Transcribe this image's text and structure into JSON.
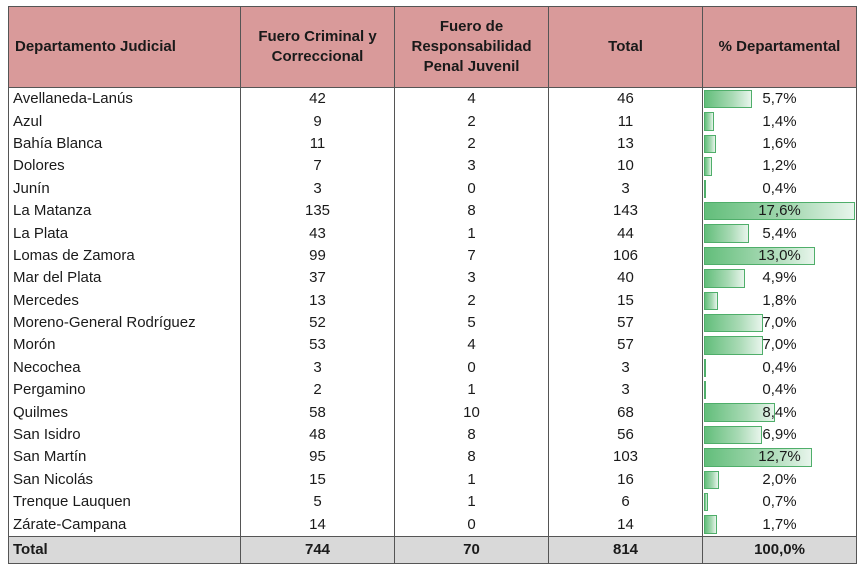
{
  "headers": {
    "departamento": "Departamento Judicial",
    "criminal": "Fuero Criminal y Correccional",
    "juvenil": "Fuero de Responsabilidad Penal Juvenil",
    "total": "Total",
    "pct": "% Departamental"
  },
  "bar_color": "#63be7b",
  "header_color": "#d99a9a",
  "footer_color": "#d9d9d9",
  "rows": [
    {
      "name": "Avellaneda-Lanús",
      "criminal": "42",
      "juvenil": "4",
      "total": "46",
      "pct": "5,7%",
      "pct_value": 5.7
    },
    {
      "name": "Azul",
      "criminal": "9",
      "juvenil": "2",
      "total": "11",
      "pct": "1,4%",
      "pct_value": 1.4
    },
    {
      "name": "Bahía Blanca",
      "criminal": "11",
      "juvenil": "2",
      "total": "13",
      "pct": "1,6%",
      "pct_value": 1.6
    },
    {
      "name": "Dolores",
      "criminal": "7",
      "juvenil": "3",
      "total": "10",
      "pct": "1,2%",
      "pct_value": 1.2
    },
    {
      "name": "Junín",
      "criminal": "3",
      "juvenil": "0",
      "total": "3",
      "pct": "0,4%",
      "pct_value": 0.4
    },
    {
      "name": "La Matanza",
      "criminal": "135",
      "juvenil": "8",
      "total": "143",
      "pct": "17,6%",
      "pct_value": 17.6
    },
    {
      "name": "La Plata",
      "criminal": "43",
      "juvenil": "1",
      "total": "44",
      "pct": "5,4%",
      "pct_value": 5.4
    },
    {
      "name": "Lomas de Zamora",
      "criminal": "99",
      "juvenil": "7",
      "total": "106",
      "pct": "13,0%",
      "pct_value": 13.0
    },
    {
      "name": "Mar del Plata",
      "criminal": "37",
      "juvenil": "3",
      "total": "40",
      "pct": "4,9%",
      "pct_value": 4.9
    },
    {
      "name": "Mercedes",
      "criminal": "13",
      "juvenil": "2",
      "total": "15",
      "pct": "1,8%",
      "pct_value": 1.8
    },
    {
      "name": "Moreno-General Rodríguez",
      "criminal": "52",
      "juvenil": "5",
      "total": "57",
      "pct": "7,0%",
      "pct_value": 7.0
    },
    {
      "name": "Morón",
      "criminal": "53",
      "juvenil": "4",
      "total": "57",
      "pct": "7,0%",
      "pct_value": 7.0
    },
    {
      "name": "Necochea",
      "criminal": "3",
      "juvenil": "0",
      "total": "3",
      "pct": "0,4%",
      "pct_value": 0.4
    },
    {
      "name": "Pergamino",
      "criminal": "2",
      "juvenil": "1",
      "total": "3",
      "pct": "0,4%",
      "pct_value": 0.4
    },
    {
      "name": "Quilmes",
      "criminal": "58",
      "juvenil": "10",
      "total": "68",
      "pct": "8,4%",
      "pct_value": 8.4
    },
    {
      "name": "San Isidro",
      "criminal": "48",
      "juvenil": "8",
      "total": "56",
      "pct": "6,9%",
      "pct_value": 6.9
    },
    {
      "name": "San Martín",
      "criminal": "95",
      "juvenil": "8",
      "total": "103",
      "pct": "12,7%",
      "pct_value": 12.7
    },
    {
      "name": "San Nicolás",
      "criminal": "15",
      "juvenil": "1",
      "total": "16",
      "pct": "2,0%",
      "pct_value": 2.0
    },
    {
      "name": "Trenque Lauquen",
      "criminal": "5",
      "juvenil": "1",
      "total": "6",
      "pct": "0,7%",
      "pct_value": 0.7
    },
    {
      "name": "Zárate-Campana",
      "criminal": "14",
      "juvenil": "0",
      "total": "14",
      "pct": "1,7%",
      "pct_value": 1.7
    }
  ],
  "footer": {
    "label": "Total",
    "criminal": "744",
    "juvenil": "70",
    "total": "814",
    "pct": "100,0%"
  }
}
